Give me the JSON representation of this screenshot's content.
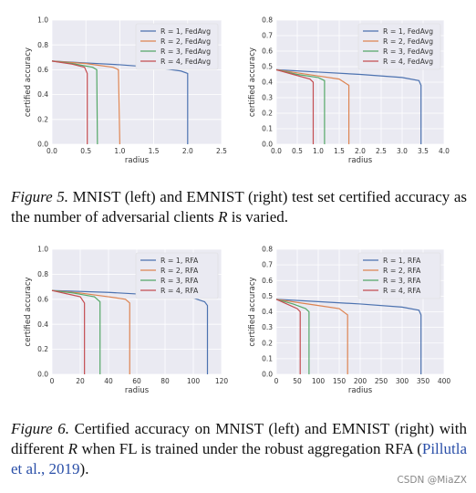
{
  "chart_data": [
    {
      "type": "line",
      "xlabel": "radius",
      "ylabel": "certified accuracy",
      "legend": "upper right",
      "grid": true,
      "xlim": [
        0,
        2.5
      ],
      "xticks": [
        {
          "value": 0,
          "label": "0.0"
        },
        0.5,
        {
          "value": 1,
          "label": "1.0"
        },
        1.5,
        {
          "value": 2,
          "label": "2.0"
        },
        2.5
      ],
      "ylim": [
        0,
        1
      ],
      "yticks": [
        {
          "value": 0,
          "label": "0.0"
        },
        0.2,
        0.4,
        0.6,
        0.8,
        {
          "value": 1,
          "label": "1.0"
        }
      ],
      "series": [
        {
          "name": "R = 1, FedAvg",
          "color": "#4c72b0",
          "x": [
            0,
            0.5,
            1.0,
            1.5,
            1.9,
            2.0,
            2.0
          ],
          "values": [
            0.67,
            0.655,
            0.64,
            0.62,
            0.59,
            0.57,
            0
          ]
        },
        {
          "name": "R = 2, FedAvg",
          "color": "#dd8452",
          "x": [
            0,
            0.5,
            0.9,
            0.98,
            1.0
          ],
          "values": [
            0.67,
            0.65,
            0.62,
            0.6,
            0
          ]
        },
        {
          "name": "R = 3, FedAvg",
          "color": "#55a868",
          "x": [
            0,
            0.3,
            0.6,
            0.66,
            0.67
          ],
          "values": [
            0.67,
            0.65,
            0.62,
            0.6,
            0
          ]
        },
        {
          "name": "R = 4, FedAvg",
          "color": "#c44e52",
          "x": [
            0,
            0.3,
            0.48,
            0.52,
            0.52
          ],
          "values": [
            0.67,
            0.645,
            0.62,
            0.57,
            0
          ]
        }
      ]
    },
    {
      "type": "line",
      "xlabel": "radius",
      "ylabel": "certified accuracy",
      "legend": "upper right",
      "grid": true,
      "xlim": [
        0,
        4
      ],
      "xticks": [
        {
          "value": 0,
          "label": "0.0"
        },
        0.5,
        {
          "value": 1,
          "label": "1.0"
        },
        1.5,
        {
          "value": 2,
          "label": "2.0"
        },
        2.5,
        {
          "value": 3,
          "label": "3.0"
        },
        3.5,
        {
          "value": 4,
          "label": "4.0"
        }
      ],
      "ylim": [
        0,
        0.8
      ],
      "yticks": [
        {
          "value": 0,
          "label": "0.0"
        },
        0.1,
        0.2,
        0.3,
        0.4,
        0.5,
        0.6,
        0.7,
        0.8
      ],
      "series": [
        {
          "name": "R = 1, FedAvg",
          "color": "#4c72b0",
          "x": [
            0,
            1,
            2,
            3,
            3.4,
            3.45,
            3.45
          ],
          "values": [
            0.48,
            0.465,
            0.45,
            0.43,
            0.41,
            0.38,
            0
          ]
        },
        {
          "name": "R = 2, FedAvg",
          "color": "#dd8452",
          "x": [
            0,
            0.5,
            1,
            1.5,
            1.73,
            1.73
          ],
          "values": [
            0.48,
            0.46,
            0.44,
            0.42,
            0.38,
            0
          ]
        },
        {
          "name": "R = 3, FedAvg",
          "color": "#55a868",
          "x": [
            0,
            0.5,
            1.0,
            1.15,
            1.15
          ],
          "values": [
            0.48,
            0.45,
            0.43,
            0.41,
            0
          ]
        },
        {
          "name": "R = 4, FedAvg",
          "color": "#c44e52",
          "x": [
            0,
            0.4,
            0.8,
            0.88,
            0.88
          ],
          "values": [
            0.48,
            0.45,
            0.42,
            0.4,
            0
          ]
        }
      ]
    },
    {
      "type": "line",
      "xlabel": "radius",
      "ylabel": "certified accuracy",
      "legend": "upper right",
      "grid": true,
      "xlim": [
        0,
        120
      ],
      "xticks": [
        0,
        20,
        40,
        60,
        80,
        100,
        120
      ],
      "ylim": [
        0,
        1
      ],
      "yticks": [
        {
          "value": 0,
          "label": "0.0"
        },
        0.2,
        0.4,
        0.6,
        0.8,
        {
          "value": 1,
          "label": "1.0"
        }
      ],
      "series": [
        {
          "name": "R = 1, RFA",
          "color": "#4c72b0",
          "x": [
            0,
            40,
            80,
            100,
            108,
            110,
            110
          ],
          "values": [
            0.67,
            0.655,
            0.63,
            0.61,
            0.58,
            0.55,
            0
          ]
        },
        {
          "name": "R = 2, RFA",
          "color": "#dd8452",
          "x": [
            0,
            20,
            40,
            52,
            55,
            55
          ],
          "values": [
            0.67,
            0.65,
            0.62,
            0.6,
            0.57,
            0
          ]
        },
        {
          "name": "R = 3, RFA",
          "color": "#55a868",
          "x": [
            0,
            15,
            30,
            34,
            34
          ],
          "values": [
            0.67,
            0.65,
            0.62,
            0.58,
            0
          ]
        },
        {
          "name": "R = 4, RFA",
          "color": "#c44e52",
          "x": [
            0,
            10,
            20,
            23,
            23
          ],
          "values": [
            0.67,
            0.645,
            0.62,
            0.57,
            0
          ]
        }
      ]
    },
    {
      "type": "line",
      "xlabel": "radius",
      "ylabel": "certified accuracy",
      "legend": "upper right",
      "grid": true,
      "xlim": [
        0,
        400
      ],
      "xticks": [
        0,
        50,
        100,
        150,
        200,
        250,
        300,
        350,
        400
      ],
      "ylim": [
        0,
        0.8
      ],
      "yticks": [
        {
          "value": 0,
          "label": "0.0"
        },
        0.1,
        0.2,
        0.3,
        0.4,
        0.5,
        0.6,
        0.7,
        0.8
      ],
      "series": [
        {
          "name": "R = 1, RFA",
          "color": "#4c72b0",
          "x": [
            0,
            100,
            200,
            300,
            340,
            345,
            345
          ],
          "values": [
            0.48,
            0.465,
            0.45,
            0.43,
            0.41,
            0.38,
            0
          ]
        },
        {
          "name": "R = 2, RFA",
          "color": "#dd8452",
          "x": [
            0,
            50,
            100,
            150,
            170,
            170
          ],
          "values": [
            0.48,
            0.46,
            0.44,
            0.42,
            0.38,
            0
          ]
        },
        {
          "name": "R = 3, RFA",
          "color": "#55a868",
          "x": [
            0,
            40,
            70,
            78,
            78
          ],
          "values": [
            0.48,
            0.45,
            0.42,
            0.4,
            0
          ]
        },
        {
          "name": "R = 4, RFA",
          "color": "#c44e52",
          "x": [
            0,
            25,
            50,
            57,
            57
          ],
          "values": [
            0.48,
            0.45,
            0.42,
            0.4,
            0
          ]
        }
      ]
    }
  ],
  "captions": [
    {
      "label": "Figure 5.",
      "text": "MNIST (left) and EMNIST (right) test set certified accuracy as the number of adversarial clients",
      "var": "R",
      "end": "is varied."
    },
    {
      "label": "Figure 6.",
      "text": "Certified accuracy on MNIST (left) and EMNIST (right) with different",
      "var": "R",
      "end": "when FL is trained under the robust aggregation RFA (",
      "cite": "Pillutla et al., 2019",
      "close": ")."
    }
  ],
  "watermark": "CSDN @MiaZX"
}
